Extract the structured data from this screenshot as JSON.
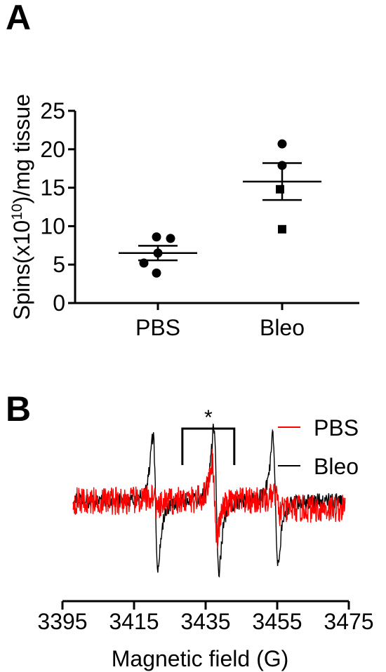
{
  "panels": {
    "a": "A",
    "b": "B"
  },
  "chart_data": [
    {
      "type": "scatter",
      "panel": "A",
      "ylabel_main": "Spins(x10",
      "ylabel_sup": "10",
      "ylabel_tail": ")/mg tissue",
      "ylim": [
        0,
        25
      ],
      "yticks": [
        0,
        5,
        10,
        15,
        20,
        25
      ],
      "categories": [
        "PBS",
        "Bleo"
      ],
      "groups": [
        {
          "category": "PBS",
          "points": [
            {
              "value": 8.6,
              "marker": "circle"
            },
            {
              "value": 8.4,
              "marker": "circle"
            },
            {
              "value": 6.5,
              "marker": "circle"
            },
            {
              "value": 5.2,
              "marker": "circle"
            },
            {
              "value": 3.9,
              "marker": "circle"
            }
          ],
          "mean": 6.5,
          "sem": 0.95
        },
        {
          "category": "Bleo",
          "points": [
            {
              "value": 20.7,
              "marker": "circle"
            },
            {
              "value": 17.9,
              "marker": "circle"
            },
            {
              "value": 14.8,
              "marker": "square"
            },
            {
              "value": 9.6,
              "marker": "square"
            }
          ],
          "mean": 15.8,
          "sem": 2.4
        }
      ]
    },
    {
      "type": "line",
      "panel": "B",
      "xlabel": "Magnetic field (G)",
      "xlim": [
        3395,
        3475
      ],
      "xticks": [
        "3395",
        "3415",
        "3435",
        "3455",
        "3475"
      ],
      "x_range_shown": [
        3398,
        3474
      ],
      "significance": {
        "label": "*",
        "x_from": 3428.5,
        "x_to": 3443
      },
      "legend_position": "top-right",
      "series": [
        {
          "name": "PBS",
          "color": "#ff0000",
          "peaks": [
            {
              "x": 3421,
              "pos": 0.1,
              "neg": -0.15
            },
            {
              "x": 3437.5,
              "pos": 0.62,
              "neg": -0.55
            },
            {
              "x": 3455,
              "pos": 0.1,
              "neg": -0.18
            }
          ],
          "noise": 0.22
        },
        {
          "name": "Bleo",
          "color": "#000000",
          "peaks": [
            {
              "x": 3421,
              "pos": 1.0,
              "neg": -1.0
            },
            {
              "x": 3438,
              "pos": 1.15,
              "neg": -1.1
            },
            {
              "x": 3454.5,
              "pos": 1.0,
              "neg": -1.0
            }
          ],
          "noise": 0.12
        }
      ]
    }
  ]
}
